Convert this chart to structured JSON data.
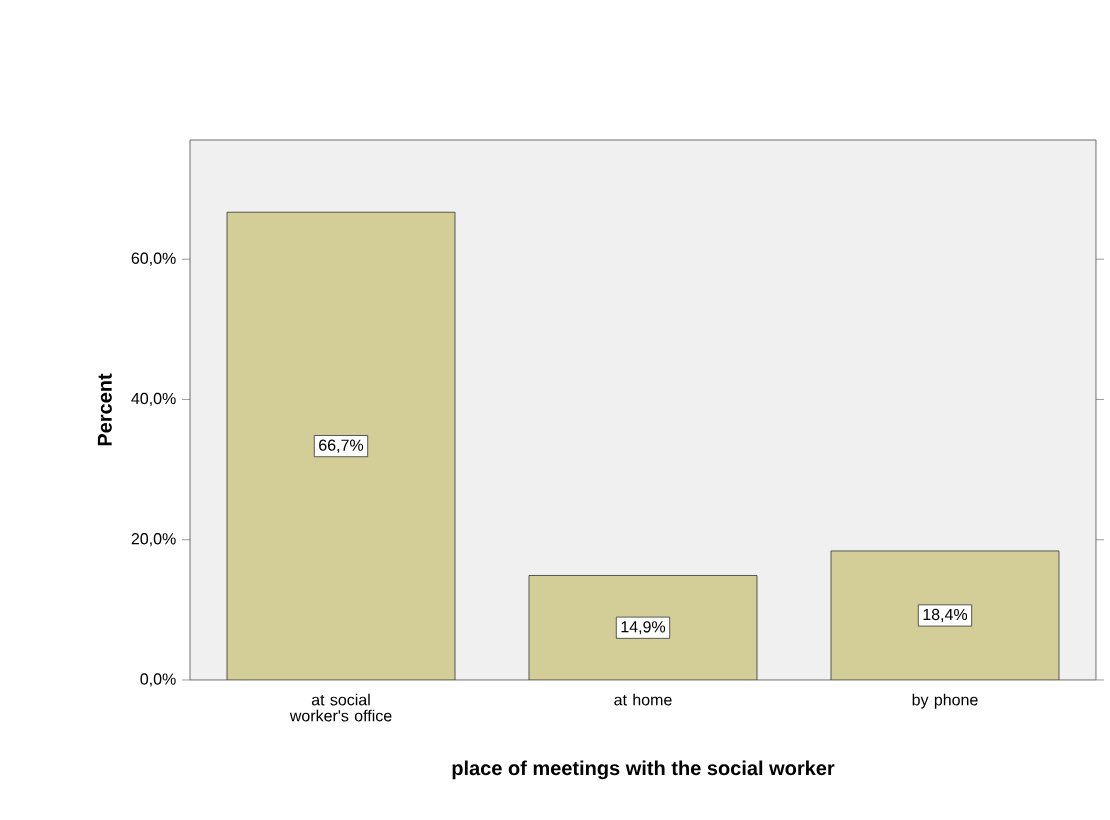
{
  "chart_data": {
    "type": "bar",
    "xlabel": "place of meetings with the social worker",
    "ylabel": "Percent",
    "categories": [
      "at social worker's office",
      "at home",
      "by phone"
    ],
    "values": [
      66.7,
      14.9,
      18.4
    ],
    "value_labels": [
      "66,7%",
      "14,9%",
      "18,4%"
    ],
    "color": "#d3ce97",
    "ylim": [
      0,
      77
    ],
    "yticks": [
      {
        "value": 0,
        "label": "0,0%"
      },
      {
        "value": 20,
        "label": "20,0%"
      },
      {
        "value": 40,
        "label": "40,0%"
      },
      {
        "value": 60,
        "label": "60,0%"
      }
    ]
  }
}
